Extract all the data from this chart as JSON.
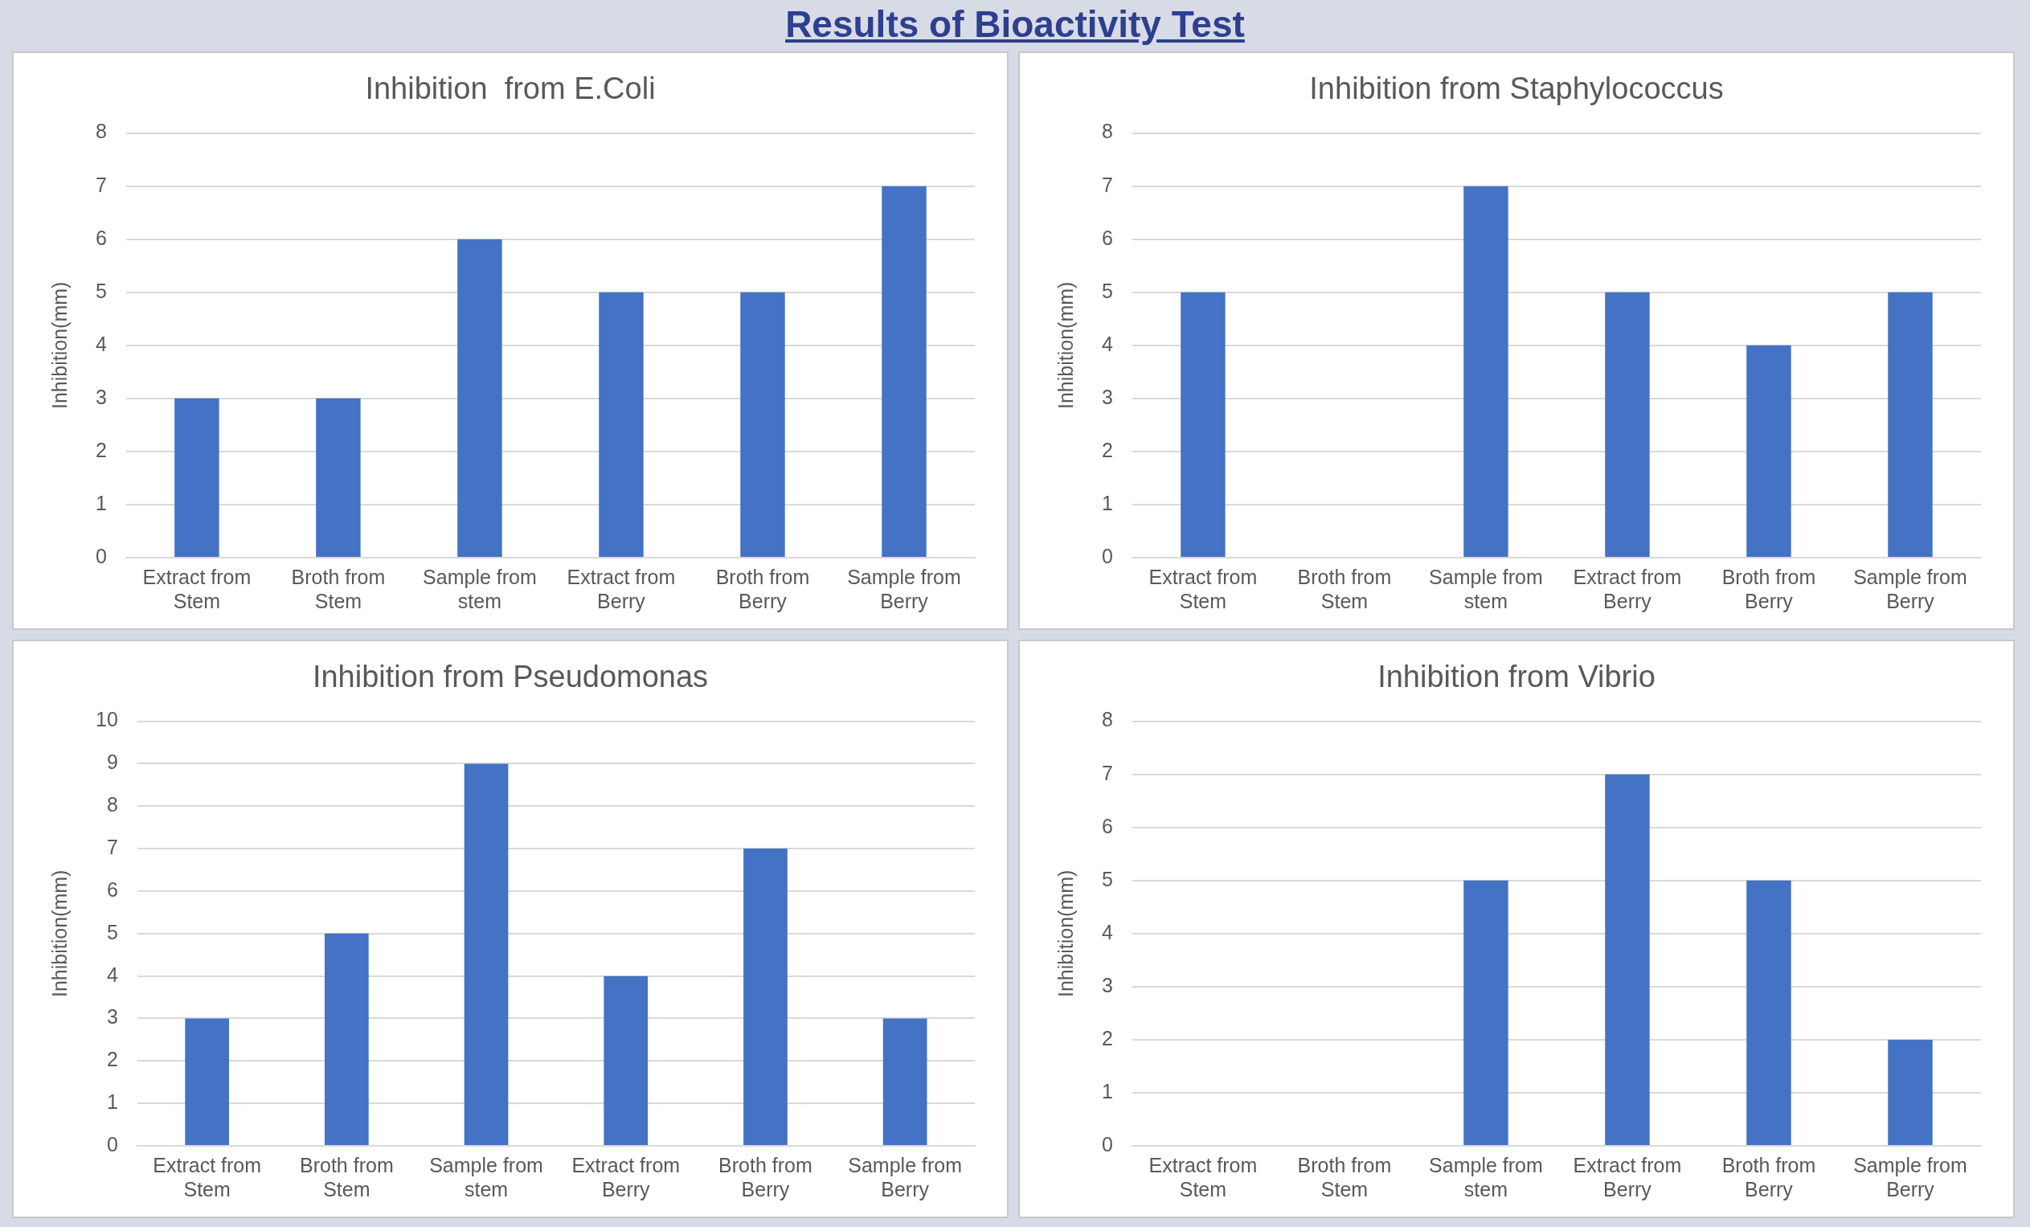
{
  "chart_data": [
    {
      "type": "bar",
      "title": "Inhibition  from E.Coli",
      "ylabel": "Inhibition(mm)",
      "annotations": [
        "Results of Bioactivity Test"
      ],
      "categories": [
        "Extract from Stem",
        "Broth from Stem",
        "Sample from stem",
        "Extract from Berry",
        "Broth from Berry",
        "Sample from Berry"
      ],
      "values": [
        3,
        3,
        6,
        5,
        5,
        7
      ],
      "color": "#4472c4",
      "ylim": [
        0,
        8
      ],
      "yticks": [
        0,
        1,
        2,
        3,
        4,
        5,
        6,
        7,
        8
      ],
      "grid": "y"
    },
    {
      "type": "bar",
      "title": "Inhibition from Staphylococcus",
      "ylabel": "Inhibition(mm)",
      "categories": [
        "Extract from Stem",
        "Broth from Stem",
        "Sample from stem",
        "Extract from Berry",
        "Broth from Berry",
        "Sample from Berry"
      ],
      "values": [
        5,
        0,
        7,
        5,
        4,
        5
      ],
      "color": "#4472c4",
      "ylim": [
        0,
        8
      ],
      "yticks": [
        0,
        1,
        2,
        3,
        4,
        5,
        6,
        7,
        8
      ],
      "grid": "y"
    },
    {
      "type": "bar",
      "title": "Inhibition from Pseudomonas",
      "ylabel": "Inhibition(mm)",
      "categories": [
        "Extract from Stem",
        "Broth from Stem",
        "Sample from stem",
        "Extract from Berry",
        "Broth from Berry",
        "Sample from Berry"
      ],
      "values": [
        3,
        5,
        9,
        4,
        7,
        3
      ],
      "color": "#4472c4",
      "ylim": [
        0,
        10
      ],
      "yticks": [
        0,
        1,
        2,
        3,
        4,
        5,
        6,
        7,
        8,
        9,
        10
      ],
      "grid": "y"
    },
    {
      "type": "bar",
      "title": "Inhibition from Vibrio",
      "ylabel": "Inhibition(mm)",
      "categories": [
        "Extract from Stem",
        "Broth from Stem",
        "Sample from stem",
        "Extract from Berry",
        "Broth from Berry",
        "Sample from Berry"
      ],
      "values": [
        0,
        0,
        5,
        7,
        5,
        2
      ],
      "color": "#4472c4",
      "ylim": [
        0,
        8
      ],
      "yticks": [
        0,
        1,
        2,
        3,
        4,
        5,
        6,
        7,
        8
      ],
      "grid": "y"
    }
  ]
}
